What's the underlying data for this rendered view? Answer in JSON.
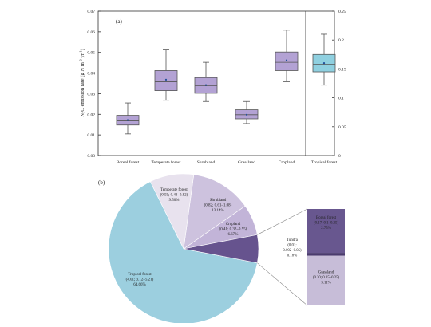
{
  "colors": {
    "box_purple": "#b3a2d4",
    "box_blue": "#8fd0e0",
    "box_outline": "#555555",
    "mean_marker": "#1f4e9a",
    "pie_tropical": "#9ccfdf",
    "pie_temperate": "#e8e2ee",
    "pie_shrubland": "#cdc2de",
    "pie_cropland": "#c2b4d8",
    "pie_dark": "#66538e",
    "pie_grassland": "#c7bdd8",
    "pie_boreal": "#68578f",
    "tundra_bar": "#4b3b6e"
  },
  "chart_data": [
    {
      "type": "box",
      "panel_label": "(a)",
      "ylabel": "N₂O emission rate (g N m⁻² yr⁻¹)",
      "ylabel_parts": {
        "a": "N",
        "b": "2",
        "c": "O emission rate (g N m",
        "d": "-2",
        "e": "yr",
        "f": "-1",
        "g": ")"
      },
      "ylim_left": [
        0,
        0.07
      ],
      "ylim_right": [
        0,
        0.25
      ],
      "left_ticks": [
        "0.00",
        "0.01",
        "0.02",
        "0.03",
        "0.04",
        "0.05",
        "0.06",
        "0.07"
      ],
      "left_tick_values": [
        0,
        0.01,
        0.02,
        0.03,
        0.04,
        0.05,
        0.06,
        0.07
      ],
      "right_ticks": [
        "0",
        "0.05",
        "0.1",
        "0.15",
        "0.2",
        "0.25"
      ],
      "right_tick_values": [
        0,
        0.05,
        0.1,
        0.15,
        0.2,
        0.25
      ],
      "categories": [
        "Boreal forest",
        "Temperate forest",
        "Shrubland",
        "Grassland",
        "Cropland",
        "Tropical forest"
      ],
      "boxes": [
        {
          "name": "Boreal forest",
          "axis": "left",
          "min": 0.0105,
          "q1": 0.0148,
          "median": 0.0168,
          "q3": 0.0195,
          "max": 0.0255,
          "mean": 0.0172
        },
        {
          "name": "Temperate forest",
          "axis": "left",
          "min": 0.0268,
          "q1": 0.0315,
          "median": 0.0358,
          "q3": 0.0412,
          "max": 0.0512,
          "mean": 0.0368
        },
        {
          "name": "Shrubland",
          "axis": "left",
          "min": 0.0262,
          "q1": 0.0302,
          "median": 0.0338,
          "q3": 0.0378,
          "max": 0.0452,
          "mean": 0.0342
        },
        {
          "name": "Grassland",
          "axis": "left",
          "min": 0.0155,
          "q1": 0.0178,
          "median": 0.0198,
          "q3": 0.0222,
          "max": 0.0262,
          "mean": 0.0198
        },
        {
          "name": "Cropland",
          "axis": "left",
          "min": 0.0358,
          "q1": 0.0412,
          "median": 0.0452,
          "q3": 0.0502,
          "max": 0.0608,
          "mean": 0.0462
        },
        {
          "name": "Tropical forest",
          "axis": "right",
          "min": 0.122,
          "q1": 0.145,
          "median": 0.158,
          "q3": 0.175,
          "max": 0.21,
          "mean": 0.16
        }
      ]
    },
    {
      "type": "pie",
      "panel_label": "(b)",
      "slices": [
        {
          "name": "Tropical forest",
          "value": 64.66,
          "label": [
            "Tropical forest",
            "(4.01; 3.12–5.21)",
            "64.66%"
          ],
          "color_key": "pie_tropical"
        },
        {
          "name": "Temperate forest",
          "value": 9.5,
          "label": [
            "Temperate forest",
            "(0.59; 0.43–0.82)",
            "9.50%"
          ],
          "color_key": "pie_temperate"
        },
        {
          "name": "Shrubland",
          "value": 13.14,
          "label": [
            "Shrubland",
            "(0.82; 0.61–1.08)",
            "13.14%"
          ],
          "color_key": "pie_shrubland"
        },
        {
          "name": "Cropland",
          "value": 6.67,
          "label": [
            "Cropland",
            "(0.41; 0.32–0.55)",
            "6.67%"
          ],
          "color_key": "pie_cropland"
        },
        {
          "name": "Others",
          "value": 6.03,
          "label": [],
          "color_key": "pie_dark"
        }
      ],
      "breakout": [
        {
          "name": "Boreal forest",
          "value": 2.75,
          "label": [
            "Boreal forest",
            "(0.17; 0.1–0.25)",
            "2.75%"
          ],
          "color_key": "pie_boreal"
        },
        {
          "name": "Tundra",
          "value": 0.18,
          "label": [
            "Tundra",
            "(0.01;",
            "0.002–0.05)",
            "0.18%"
          ],
          "color_key": "tundra_bar"
        },
        {
          "name": "Grassland",
          "value": 3.11,
          "label": [
            "Grassland",
            "(0.20; 0.15–0.25)",
            "3.11%"
          ],
          "color_key": "pie_grassland"
        }
      ]
    }
  ]
}
